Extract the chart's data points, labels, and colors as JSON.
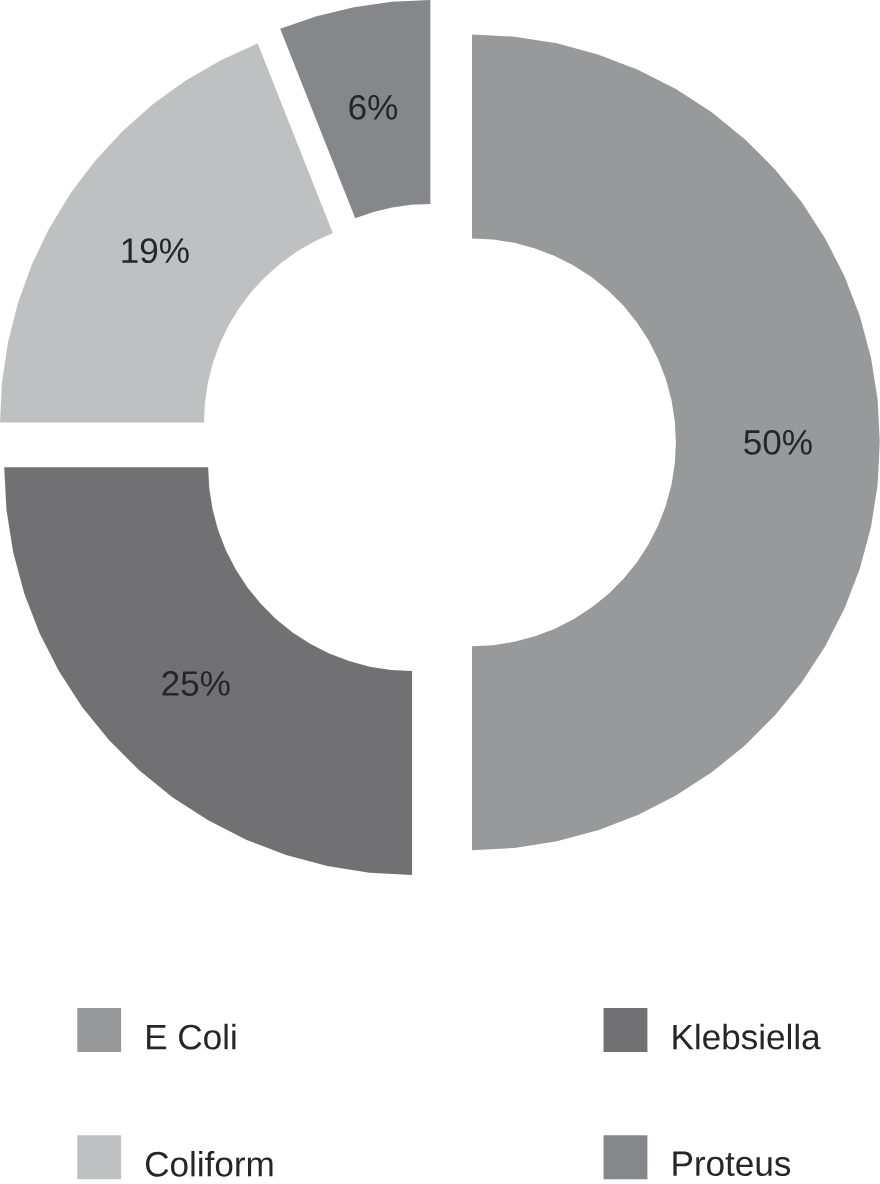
{
  "chart_data": {
    "type": "donut",
    "categories": [
      "E Coli",
      "Klebsiella",
      "Coliform",
      "Proteus"
    ],
    "values": [
      50,
      25,
      19,
      6
    ],
    "colors": [
      "#98999b",
      "#717174",
      "#bfc0c2",
      "#86878a"
    ],
    "value_labels": [
      "50%",
      "25%",
      "19%",
      "6%"
    ],
    "legend": "bottom"
  }
}
